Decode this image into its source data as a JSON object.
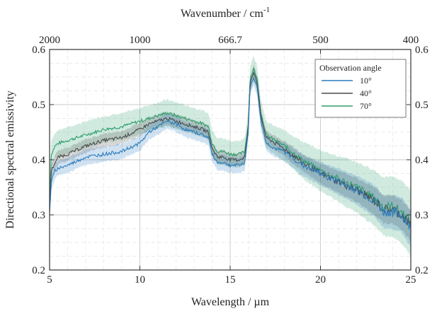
{
  "chart_data": {
    "type": "line",
    "xlabel": "Wavelength / µm",
    "ylabel": "Directional spectral emissivity",
    "x2label_main": "Wavenumber / cm",
    "x2label_sup": "-1",
    "xlim": [
      5,
      25
    ],
    "ylim": [
      0.2,
      0.6
    ],
    "x_ticks": [
      5,
      10,
      15,
      20,
      25
    ],
    "y_ticks": [
      0.2,
      0.3,
      0.4,
      0.5,
      0.6
    ],
    "x_tick_labels": [
      "5",
      "10",
      "15",
      "20",
      "25"
    ],
    "y_tick_labels": [
      "0.2",
      "0.3",
      "0.4",
      "0.5",
      "0.6"
    ],
    "top_ticks": [
      {
        "label": "2000",
        "wavelength": 5
      },
      {
        "label": "1000",
        "wavelength": 10
      },
      {
        "label": "666.7",
        "wavelength": 15
      },
      {
        "label": "500",
        "wavelength": 20
      },
      {
        "label": "400",
        "wavelength": 25
      }
    ],
    "grid": true,
    "legend_title": "Observation angle",
    "legend_position": "top-right",
    "x": [
      5.0,
      5.1,
      5.3,
      5.5,
      6.0,
      7.0,
      8.0,
      9.0,
      10.0,
      10.5,
      11.0,
      11.5,
      12.0,
      12.5,
      13.0,
      13.5,
      13.8,
      14.0,
      14.3,
      14.6,
      15.0,
      15.5,
      15.8,
      16.0,
      16.1,
      16.3,
      16.5,
      16.7,
      17.0,
      17.5,
      18.0,
      19.0,
      20.0,
      21.0,
      22.0,
      23.0,
      23.5,
      24.0,
      24.5,
      25.0
    ],
    "series": [
      {
        "name": "10°",
        "color": "#2b7bbd",
        "band": 0.012,
        "values": [
          0.305,
          0.36,
          0.38,
          0.385,
          0.39,
          0.405,
          0.41,
          0.415,
          0.43,
          0.45,
          0.46,
          0.47,
          0.465,
          0.455,
          0.45,
          0.445,
          0.44,
          0.41,
          0.395,
          0.395,
          0.39,
          0.39,
          0.395,
          0.45,
          0.53,
          0.55,
          0.53,
          0.47,
          0.43,
          0.42,
          0.415,
          0.39,
          0.375,
          0.36,
          0.345,
          0.325,
          0.305,
          0.305,
          0.3,
          0.275
        ]
      },
      {
        "name": "40°",
        "color": "#4a4a4a",
        "band": 0.01,
        "values": [
          0.31,
          0.38,
          0.395,
          0.405,
          0.41,
          0.425,
          0.435,
          0.44,
          0.455,
          0.465,
          0.47,
          0.475,
          0.47,
          0.465,
          0.46,
          0.455,
          0.45,
          0.42,
          0.405,
          0.405,
          0.4,
          0.4,
          0.405,
          0.46,
          0.54,
          0.56,
          0.54,
          0.48,
          0.44,
          0.43,
          0.42,
          0.395,
          0.375,
          0.36,
          0.345,
          0.325,
          0.31,
          0.31,
          0.3,
          0.28
        ]
      },
      {
        "name": "70°",
        "color": "#2e9e6e",
        "band": 0.022,
        "values": [
          0.33,
          0.41,
          0.425,
          0.43,
          0.435,
          0.445,
          0.455,
          0.46,
          0.47,
          0.475,
          0.48,
          0.485,
          0.48,
          0.475,
          0.47,
          0.465,
          0.46,
          0.43,
          0.415,
          0.415,
          0.41,
          0.41,
          0.415,
          0.465,
          0.545,
          0.565,
          0.545,
          0.485,
          0.445,
          0.435,
          0.425,
          0.4,
          0.38,
          0.365,
          0.35,
          0.33,
          0.315,
          0.315,
          0.305,
          0.285
        ]
      }
    ]
  }
}
